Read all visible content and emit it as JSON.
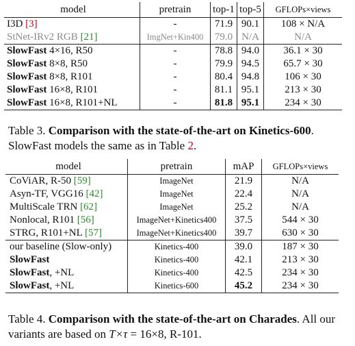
{
  "table3": {
    "headers": {
      "model": "model",
      "pretrain": "pretrain",
      "top1": "top-1",
      "top5": "top-5",
      "gflops": "GFLOPs×views"
    },
    "rows_a": [
      {
        "model": "I3D ",
        "cite": "[3]",
        "pretrain": "-",
        "top1": "71.9",
        "top5": "90.1",
        "gflops": "108 × N/A"
      },
      {
        "model": "StNet-IRv2 RGB ",
        "cite": "[21]",
        "pretrain": "ImgNet+Kin400",
        "top1": "79.0",
        "top5": "N/A",
        "gflops": "N/A"
      }
    ],
    "rows_b": [
      {
        "bold": "SlowFast",
        "rest": " 4×16, R50",
        "pretrain": "-",
        "top1": "78.8",
        "top5": "94.0",
        "gflops": "36.1 × 30"
      },
      {
        "bold": "SlowFast",
        "rest": " 8×8, R50",
        "pretrain": "-",
        "top1": "79.9",
        "top5": "94.5",
        "gflops": "65.7 × 30"
      },
      {
        "bold": "SlowFast",
        "rest": " 8×8, R101",
        "pretrain": "-",
        "top1": "80.4",
        "top5": "94.8",
        "gflops": "106 × 30"
      },
      {
        "bold": "SlowFast",
        "rest": " 16×8, R101",
        "pretrain": "-",
        "top1": "81.1",
        "top5": "95.1",
        "gflops": "213 × 30"
      },
      {
        "bold": "SlowFast",
        "rest": " 16×8, R101+NL",
        "pretrain": "-",
        "top1": "81.8",
        "top5": "95.1",
        "gflops": "234 × 30"
      }
    ],
    "caption": {
      "label": "Table 3. ",
      "bold": "Comparison with the state-of-the-art on Kinetics-600",
      "after": ". SlowFast models the same as in Table ",
      "ref": "2",
      "end": "."
    }
  },
  "table4": {
    "headers": {
      "model": "model",
      "pretrain": "pretrain",
      "map": "mAP",
      "gflops": "GFLOPs×views"
    },
    "rows_a": [
      {
        "model": "CoViAR, R-50 ",
        "cite": "[59]",
        "pretrain": "ImageNet",
        "map": "21.9",
        "gflops": "N/A"
      },
      {
        "model": "Asyn-TF, VGG16 ",
        "cite": "[42]",
        "pretrain": "ImageNet",
        "map": "22.4",
        "gflops": "N/A"
      },
      {
        "model": "MultiScale TRN ",
        "cite": "[62]",
        "pretrain": "ImageNet",
        "map": "25.2",
        "gflops": "N/A"
      },
      {
        "model": "Nonlocal, R101 ",
        "cite": "[56]",
        "pretrain": "ImageNet+Kinetics400",
        "map": "37.5",
        "gflops": "544 × 30"
      },
      {
        "model": "STRG, R101+NL ",
        "cite": "[57]",
        "pretrain": "ImageNet+Kinetics400",
        "map": "39.7",
        "gflops": "630 × 30"
      }
    ],
    "rows_b": [
      {
        "model": "our baseline (Slow-only)",
        "bold": "",
        "rest": "",
        "pretrain": "Kinetics-400",
        "map": "39.0",
        "gflops": "187 × 30"
      },
      {
        "model": "",
        "bold": "SlowFast",
        "rest": "",
        "pretrain": "Kinetics-400",
        "map": "42.1",
        "gflops": "213 × 30"
      },
      {
        "model": "",
        "bold": "SlowFast",
        "rest": ", +NL",
        "pretrain": "Kinetics-400",
        "map": "42.5",
        "gflops": "234 × 30"
      },
      {
        "model": "",
        "bold": "SlowFast",
        "rest": ", +NL",
        "pretrain": "Kinetics-600",
        "map": "45.2",
        "gflops": "234 × 30"
      }
    ],
    "caption": {
      "label": "Table 4. ",
      "bold": "Comparison with the state-of-the-art on Charades",
      "after": ". All our variants are based on ",
      "math": "T×τ",
      "end": " = 16×8, R-101."
    }
  }
}
